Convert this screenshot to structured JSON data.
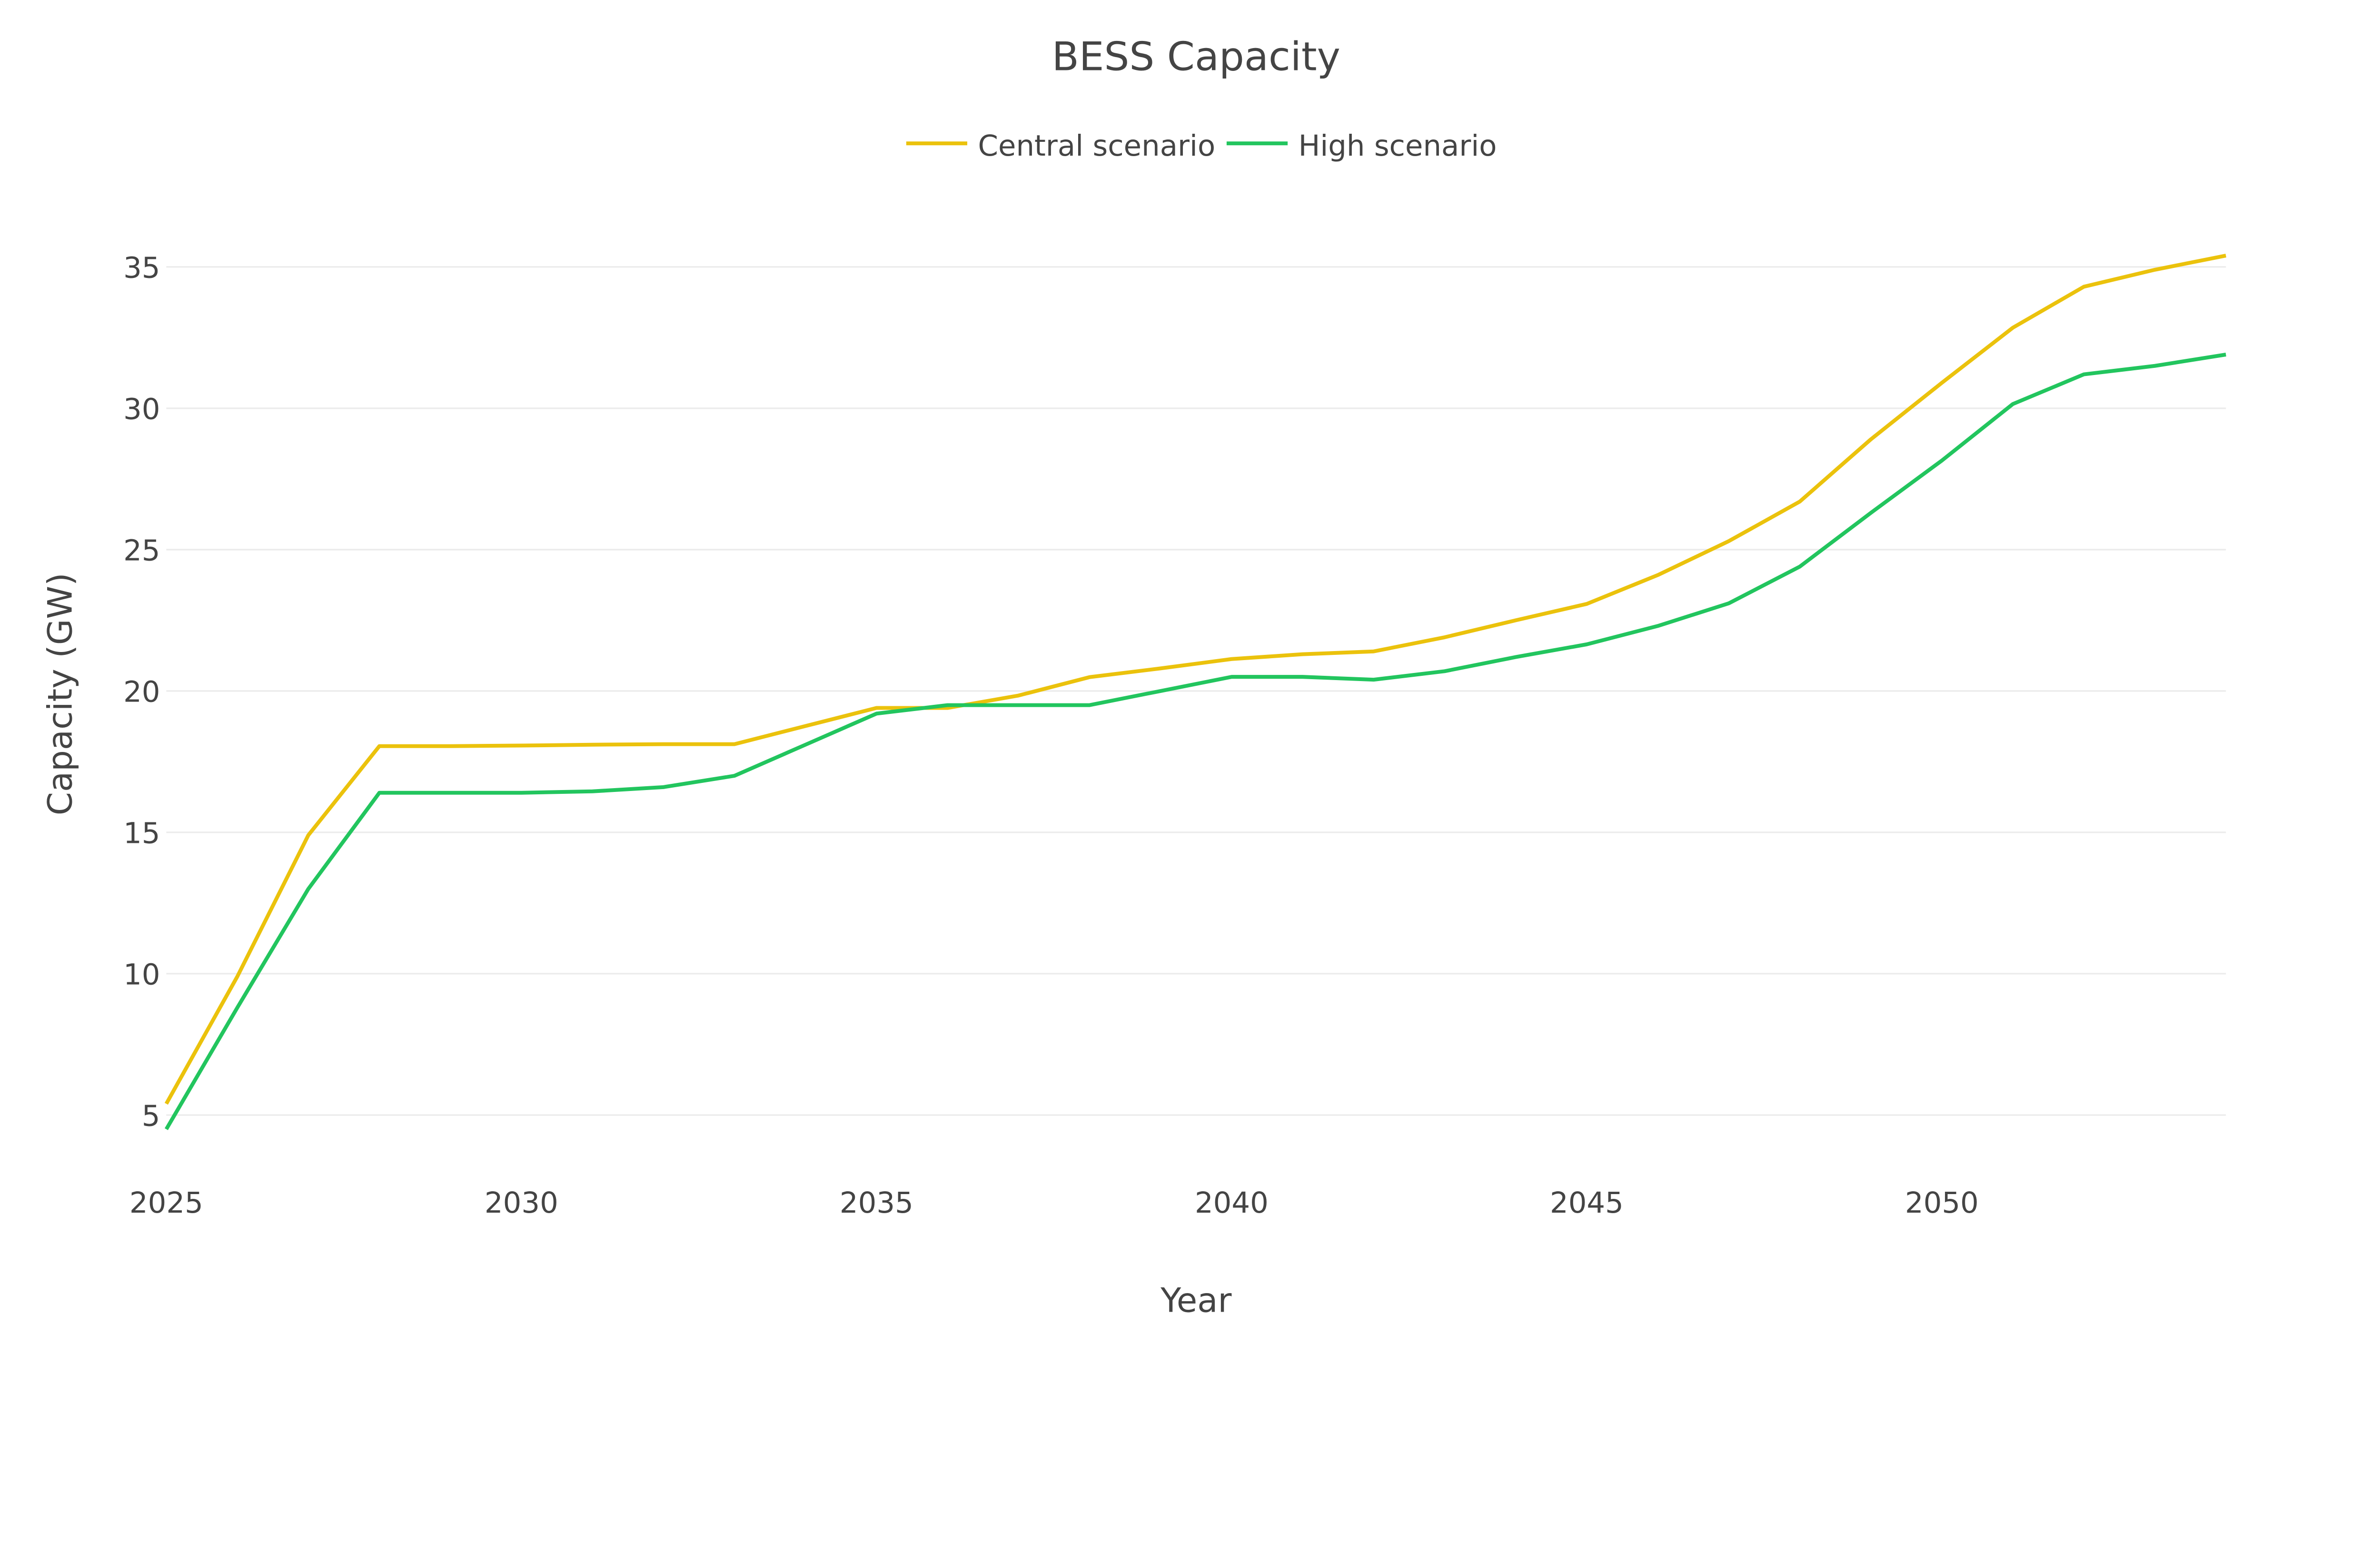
{
  "chart_data": {
    "type": "line",
    "title": "BESS Capacity",
    "xlabel": "Year",
    "ylabel": "Capacity (GW)",
    "legend_position": "top-center",
    "grid": {
      "horizontal": true,
      "vertical": false
    },
    "xlim": [
      2025,
      2054
    ],
    "ylim": [
      3.5,
      36.5
    ],
    "x_ticks": [
      2025,
      2030,
      2035,
      2040,
      2045,
      2050
    ],
    "y_ticks": [
      5,
      10,
      15,
      20,
      25,
      30,
      35
    ],
    "x": [
      2025,
      2026,
      2027,
      2028,
      2029,
      2030,
      2031,
      2032,
      2033,
      2034,
      2035,
      2036,
      2037,
      2038,
      2039,
      2040,
      2041,
      2042,
      2043,
      2044,
      2045,
      2046,
      2047,
      2048,
      2049,
      2050,
      2051,
      2052,
      2053,
      2054
    ],
    "series": [
      {
        "name": "Central scenario",
        "color": "#EBC20C",
        "values": [
          5.4,
          9.9,
          14.9,
          18.05,
          18.05,
          18.07,
          18.1,
          18.12,
          18.12,
          18.76,
          19.4,
          19.4,
          19.84,
          20.49,
          20.8,
          21.13,
          21.3,
          21.4,
          21.9,
          22.5,
          23.08,
          24.1,
          25.3,
          26.7,
          28.9,
          30.9,
          32.85,
          34.3,
          34.9,
          35.4
        ]
      },
      {
        "name": "High scenario",
        "color": "#22C55E",
        "values": [
          4.5,
          8.8,
          13.0,
          16.4,
          16.4,
          16.4,
          16.45,
          16.6,
          17.0,
          18.1,
          19.2,
          19.5,
          19.5,
          19.5,
          20.0,
          20.5,
          20.5,
          20.4,
          20.7,
          21.2,
          21.65,
          22.3,
          23.1,
          24.4,
          26.3,
          28.15,
          30.15,
          31.2,
          31.5,
          31.9
        ]
      }
    ]
  }
}
